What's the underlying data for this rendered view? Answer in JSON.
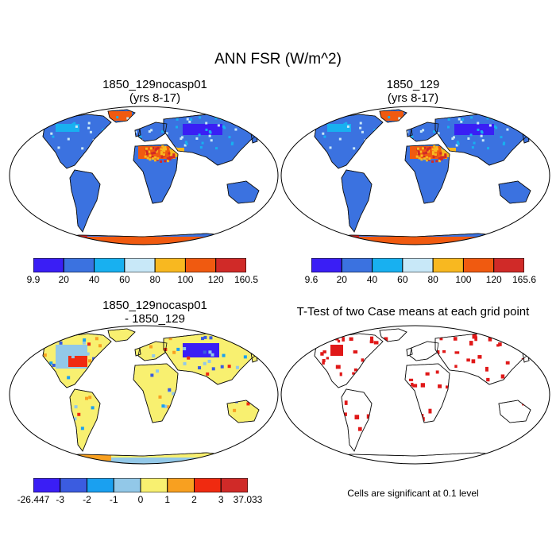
{
  "title": "ANN FSR (W/m^2)",
  "panels": [
    {
      "id": "tl",
      "title1": "1850_129nocasp01",
      "title2": "(yrs 8-17)"
    },
    {
      "id": "tr",
      "title1": "1850_129",
      "title2": "(yrs 8-17)"
    },
    {
      "id": "bl",
      "title1": "1850_129nocasp01",
      "title2": "- 1850_129"
    },
    {
      "id": "br",
      "title1": "T-Test of two Case means at each grid point",
      "title2": ""
    }
  ],
  "colorbars": {
    "abs_colors": [
      "#3a1ef5",
      "#3b72e0",
      "#18b0f0",
      "#c8e8f8",
      "#f8b820",
      "#f05a10",
      "#d02a28"
    ],
    "case1_labels": [
      "9.9",
      "20",
      "40",
      "60",
      "80",
      "100",
      "120",
      "160.5"
    ],
    "case2_labels": [
      "9.6",
      "20",
      "40",
      "60",
      "80",
      "100",
      "120",
      "165.6"
    ],
    "diff_colors": [
      "#3a1ef5",
      "#3b5ce0",
      "#1aa0f0",
      "#92c8e8",
      "#f8f070",
      "#f8a020",
      "#f02a10",
      "#d02a28"
    ],
    "diff_labels": [
      "-26.447",
      "-3",
      "-2",
      "-1",
      "0",
      "1",
      "2",
      "3",
      "37.033"
    ]
  },
  "significance_note": "Cells are significant at 0.1 level",
  "colors": {
    "land_base": "#3b72e0",
    "sig_red": "#e01818",
    "coast": "#111111"
  }
}
